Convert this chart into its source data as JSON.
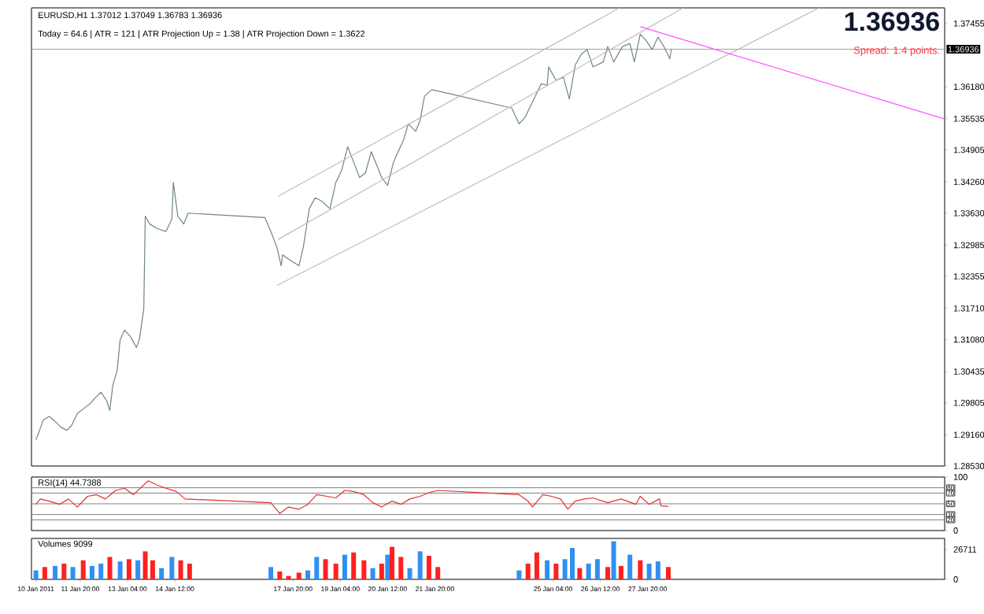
{
  "chart_data": [
    {
      "type": "line",
      "title": "EURUSD,H1  1.37012 1.37049 1.36783 1.36936",
      "subtitle": "Today = 64.6   |   ATR = 121   |   ATR Projection Up = 1.38   |   ATR Projection Down = 1.3622",
      "annotations": [
        "1.36936",
        "Spread: 1.4 points."
      ],
      "xlim": [
        "2011-01-10T11:00",
        "2011-02-05T05:00"
      ],
      "ylim": [
        1.2853,
        1.3777
      ],
      "tick_labels": "y",
      "yticks": [
        {
          "value": 1.2853,
          "label": "1.28530"
        },
        {
          "value": 1.2916,
          "label": "1.29160"
        },
        {
          "value": 1.29805,
          "label": "1.29805"
        },
        {
          "value": 1.30435,
          "label": "1.30435"
        },
        {
          "value": 1.3108,
          "label": "1.31080"
        },
        {
          "value": 1.3171,
          "label": "1.31710"
        },
        {
          "value": 1.32355,
          "label": "1.32355"
        },
        {
          "value": 1.32985,
          "label": "1.32985"
        },
        {
          "value": 1.3363,
          "label": "1.33630"
        },
        {
          "value": 1.3426,
          "label": "1.34260"
        },
        {
          "value": 1.34905,
          "label": "1.34905"
        },
        {
          "value": 1.35535,
          "label": "1.35535"
        },
        {
          "value": 1.3618,
          "label": "1.36180"
        },
        {
          "value": 1.37455,
          "label": "1.37455"
        }
      ],
      "ref_lines": [
        {
          "axis": "y",
          "value": 1.36936,
          "label": "1.36936",
          "color": "#a0a0a0"
        }
      ],
      "series": [
        {
          "color": "#6f8585",
          "x": [
            "2011-01-10T14:00",
            "2011-01-10T16:00",
            "2011-01-10T19:00",
            "2011-01-10T23:00",
            "2011-01-11T03:00",
            "2011-01-11T07:00",
            "2011-01-11T11:00",
            "2011-01-11T14:00",
            "2011-01-11T18:00",
            "2011-01-11T22:00",
            "2011-01-12T02:00",
            "2011-01-12T06:00",
            "2011-01-12T10:00",
            "2011-01-12T14:00",
            "2011-01-12T16:00",
            "2011-01-12T18:00",
            "2011-01-12T21:00",
            "2011-01-12T23:00",
            "2011-01-13T02:00",
            "2011-01-13T06:00",
            "2011-01-13T10:00",
            "2011-01-13T12:00",
            "2011-01-13T15:00",
            "2011-01-13T16:00",
            "2011-01-13T19:00",
            "2011-01-14T00:00",
            "2011-01-14T06:00",
            "2011-01-14T10:00",
            "2011-01-14T11:00",
            "2011-01-14T14:00",
            "2011-01-14T18:00",
            "2011-01-14T21:00",
            "2011-01-17T01:00",
            "2011-01-17T05:00",
            "2011-01-17T09:00",
            "2011-01-17T12:00",
            "2011-01-17T13:00",
            "2011-01-17T17:00",
            "2011-01-18T00:00",
            "2011-01-18T03:00",
            "2011-01-18T07:00",
            "2011-01-18T11:00",
            "2011-01-18T15:00",
            "2011-01-18T21:00",
            "2011-01-19T01:00",
            "2011-01-19T05:00",
            "2011-01-19T09:00",
            "2011-01-19T13:00",
            "2011-01-19T17:00",
            "2011-01-19T21:00",
            "2011-01-20T01:00",
            "2011-01-20T08:00",
            "2011-01-20T12:00",
            "2011-01-20T16:00",
            "2011-01-20T23:00",
            "2011-01-21T02:00",
            "2011-01-21T07:00",
            "2011-01-21T10:00",
            "2011-01-21T13:00",
            "2011-01-21T18:00",
            "2011-01-24T00:00",
            "2011-01-24T05:00",
            "2011-01-24T09:00",
            "2011-01-24T16:00",
            "2011-01-24T20:00",
            "2011-01-25T00:00",
            "2011-01-25T01:00",
            "2011-01-25T06:00",
            "2011-01-25T11:00",
            "2011-01-25T15:00",
            "2011-01-25T19:00",
            "2011-01-25T23:00",
            "2011-01-26T03:00",
            "2011-01-26T07:00",
            "2011-01-26T14:00",
            "2011-01-26T17:00",
            "2011-01-26T21:00",
            "2011-01-27T03:00",
            "2011-01-27T08:00",
            "2011-01-27T11:00",
            "2011-01-27T15:00",
            "2011-01-27T19:00",
            "2011-01-27T23:00",
            "2011-01-28T03:00",
            "2011-01-28T07:00",
            "2011-01-28T11:00",
            "2011-01-28T12:00"
          ],
          "values": [
            1.2906,
            1.2921,
            1.2946,
            1.2953,
            1.2943,
            1.2931,
            1.2925,
            1.2934,
            1.2959,
            1.2968,
            1.2977,
            1.299,
            1.3002,
            1.2984,
            1.2965,
            1.3015,
            1.3046,
            1.3108,
            1.3127,
            1.3114,
            1.3092,
            1.3108,
            1.317,
            1.3357,
            1.3341,
            1.3332,
            1.3326,
            1.3351,
            1.3425,
            1.3357,
            1.3341,
            1.3363,
            1.3354,
            1.3326,
            1.3295,
            1.3257,
            1.3279,
            1.327,
            1.3257,
            1.3295,
            1.3372,
            1.3394,
            1.3388,
            1.3372,
            1.3425,
            1.345,
            1.3497,
            1.3466,
            1.3435,
            1.3444,
            1.3487,
            1.3435,
            1.3419,
            1.3466,
            1.3512,
            1.3543,
            1.3528,
            1.355,
            1.3599,
            1.3612,
            1.3575,
            1.3543,
            1.3556,
            1.3599,
            1.3624,
            1.3621,
            1.3658,
            1.3631,
            1.3637,
            1.3593,
            1.3662,
            1.3683,
            1.3693,
            1.3658,
            1.3668,
            1.3699,
            1.3668,
            1.3699,
            1.3705,
            1.3668,
            1.3724,
            1.3711,
            1.3693,
            1.3718,
            1.3699,
            1.3674,
            1.3694
          ]
        },
        {
          "color": "#c8b8b8",
          "x": [
            "2011-01-17T10:00",
            "2011-01-27T01:00"
          ],
          "values": [
            1.3397,
            1.3777
          ]
        },
        {
          "color": "#c8b8b8",
          "x": [
            "2011-01-17T10:00",
            "2011-01-28T20:00"
          ],
          "values": [
            1.331,
            1.3777
          ]
        },
        {
          "color": "#c8b8b8",
          "x": [
            "2011-01-17T09:00",
            "2011-02-01T16:00"
          ],
          "values": [
            1.3217,
            1.3777
          ]
        },
        {
          "color": "#ff55ff",
          "x": [
            "2011-01-27T15:00",
            "2011-02-05T05:00"
          ],
          "values": [
            1.3739,
            1.3553
          ]
        }
      ]
    },
    {
      "type": "line",
      "title": "RSI(14) 44.7388",
      "xlim": [
        "2011-01-10T11:00",
        "2011-02-05T05:00"
      ],
      "ylim": [
        0,
        100
      ],
      "yticks": [
        0,
        100
      ],
      "tick_labels": "y",
      "ref_lines": [
        {
          "axis": "y",
          "value": 80,
          "label": "80",
          "color": "#808080"
        },
        {
          "axis": "y",
          "value": 70,
          "label": "70",
          "color": "#808080"
        },
        {
          "axis": "y",
          "value": 50,
          "label": "50",
          "color": "#808080"
        },
        {
          "axis": "y",
          "value": 30,
          "label": "30",
          "color": "#808080"
        },
        {
          "axis": "y",
          "value": 20,
          "label": "20",
          "color": "#808080"
        }
      ],
      "series": [
        {
          "color": "#e03030",
          "x": [
            "2011-01-10T14:00",
            "2011-01-10T17:00",
            "2011-01-10T23:00",
            "2011-01-11T06:00",
            "2011-01-11T12:00",
            "2011-01-11T18:00",
            "2011-01-12T01:00",
            "2011-01-12T07:00",
            "2011-01-12T13:00",
            "2011-01-12T20:00",
            "2011-01-13T02:00",
            "2011-01-13T08:00",
            "2011-01-13T18:00",
            "2011-01-14T00:00",
            "2011-01-14T06:00",
            "2011-01-14T13:00",
            "2011-01-14T19:00",
            "2011-01-17T05:00",
            "2011-01-17T11:00",
            "2011-01-17T17:00",
            "2011-01-18T00:00",
            "2011-01-18T06:00",
            "2011-01-18T12:00",
            "2011-01-18T19:00",
            "2011-01-19T01:00",
            "2011-01-19T07:00",
            "2011-01-19T13:00",
            "2011-01-19T20:00",
            "2011-01-20T02:00",
            "2011-01-20T08:00",
            "2011-01-20T15:00",
            "2011-01-20T21:00",
            "2011-01-21T03:00",
            "2011-01-21T10:00",
            "2011-01-21T16:00",
            "2011-01-21T22:00",
            "2011-01-24T05:00",
            "2011-01-24T11:00",
            "2011-01-24T14:00",
            "2011-01-24T21:00",
            "2011-01-25T03:00",
            "2011-01-25T09:00",
            "2011-01-25T14:00",
            "2011-01-25T19:00",
            "2011-01-26T01:00",
            "2011-01-26T07:00",
            "2011-01-26T17:00",
            "2011-01-27T02:00",
            "2011-01-27T12:00",
            "2011-01-27T15:00",
            "2011-01-27T21:00",
            "2011-01-28T04:00",
            "2011-01-28T05:00",
            "2011-01-28T10:00"
          ],
          "values": [
            49,
            59,
            55,
            49,
            59,
            44,
            64,
            67,
            59,
            75,
            79,
            67,
            93,
            85,
            79,
            73,
            59,
            52,
            32,
            44,
            40,
            49,
            67,
            64,
            61,
            75,
            73,
            67,
            52,
            44,
            55,
            49,
            59,
            64,
            71,
            75,
            67,
            55,
            44,
            67,
            64,
            59,
            40,
            55,
            59,
            61,
            52,
            59,
            49,
            64,
            49,
            59,
            46,
            45
          ]
        }
      ]
    },
    {
      "type": "bar",
      "title": "Volumes 9099",
      "xlim": [
        "2011-01-10T11:00",
        "2011-02-05T05:00"
      ],
      "ylim": [
        0,
        36500
      ],
      "yticks": [
        0,
        26711
      ],
      "xticks": [
        {
          "value": "2011-01-10T14:00",
          "label": "10 Jan 2011"
        },
        {
          "value": "2011-01-11T20:00",
          "label": "11 Jan 20:00"
        },
        {
          "value": "2011-01-13T04:00",
          "label": "13 Jan 04:00"
        },
        {
          "value": "2011-01-14T12:00",
          "label": "14 Jan 12:00"
        },
        {
          "value": "2011-01-17T20:00",
          "label": "17 Jan 20:00"
        },
        {
          "value": "2011-01-19T04:00",
          "label": "19 Jan 04:00"
        },
        {
          "value": "2011-01-20T12:00",
          "label": "20 Jan 12:00"
        },
        {
          "value": "2011-01-21T20:00",
          "label": "21 Jan 20:00"
        },
        {
          "value": "2011-01-25T04:00",
          "label": "25 Jan 04:00"
        },
        {
          "value": "2011-01-26T12:00",
          "label": "26 Jan 12:00"
        },
        {
          "value": "2011-01-27T20:00",
          "label": "27 Jan 20:00"
        }
      ],
      "x": [
        "2011-01-10T14:00",
        "2011-01-10T20:00",
        "2011-01-11T03:00",
        "2011-01-11T09:00",
        "2011-01-11T15:00",
        "2011-01-11T22:00",
        "2011-01-12T04:00",
        "2011-01-12T10:00",
        "2011-01-12T16:00",
        "2011-01-12T23:00",
        "2011-01-13T05:00",
        "2011-01-13T11:00",
        "2011-01-13T16:00",
        "2011-01-13T21:00",
        "2011-01-14T03:00",
        "2011-01-14T10:00",
        "2011-01-14T16:00",
        "2011-01-14T22:00",
        "2011-01-17T05:00",
        "2011-01-17T11:00",
        "2011-01-17T17:00",
        "2011-01-18T00:00",
        "2011-01-18T06:00",
        "2011-01-18T12:00",
        "2011-01-18T18:00",
        "2011-01-19T01:00",
        "2011-01-19T07:00",
        "2011-01-19T13:00",
        "2011-01-19T20:00",
        "2011-01-20T02:00",
        "2011-01-20T08:00",
        "2011-01-20T12:00",
        "2011-01-20T15:00",
        "2011-01-20T21:00",
        "2011-01-21T03:00",
        "2011-01-21T10:00",
        "2011-01-21T16:00",
        "2011-01-21T22:00",
        "2011-01-24T05:00",
        "2011-01-24T11:00",
        "2011-01-24T17:00",
        "2011-01-25T00:00",
        "2011-01-25T06:00",
        "2011-01-25T12:00",
        "2011-01-25T17:00",
        "2011-01-25T22:00",
        "2011-01-26T04:00",
        "2011-01-26T10:00",
        "2011-01-26T17:00",
        "2011-01-26T21:00",
        "2011-01-27T02:00",
        "2011-01-27T08:00",
        "2011-01-27T15:00",
        "2011-01-27T21:00",
        "2011-01-28T03:00",
        "2011-01-28T10:00"
      ],
      "values": [
        8000,
        11000,
        12000,
        14000,
        11000,
        17000,
        12000,
        14000,
        20000,
        16000,
        18000,
        17000,
        25000,
        17000,
        10000,
        20000,
        17000,
        14000,
        11000,
        7000,
        3000,
        6000,
        8000,
        20000,
        18000,
        14000,
        22000,
        24000,
        17000,
        10000,
        14000,
        22000,
        29000,
        20000,
        10000,
        25000,
        21000,
        11000,
        8000,
        14000,
        24000,
        17000,
        14000,
        18000,
        28000,
        10000,
        14000,
        18000,
        11000,
        34000,
        12000,
        22000,
        17000,
        14000,
        16000,
        11000
      ],
      "colors": [
        "#3090f0",
        "#ff2020",
        "#3090f0",
        "#ff2020",
        "#3090f0",
        "#ff2020",
        "#3090f0",
        "#3090f0",
        "#ff2020",
        "#3090f0",
        "#ff2020",
        "#3090f0",
        "#ff2020",
        "#ff2020",
        "#3090f0",
        "#3090f0",
        "#ff2020",
        "#ff2020",
        "#3090f0",
        "#ff2020",
        "#ff2020",
        "#ff2020",
        "#3090f0",
        "#3090f0",
        "#ff2020",
        "#ff2020",
        "#3090f0",
        "#ff2020",
        "#ff2020",
        "#3090f0",
        "#ff2020",
        "#3090f0",
        "#ff2020",
        "#ff2020",
        "#3090f0",
        "#3090f0",
        "#ff2020",
        "#ff2020",
        "#3090f0",
        "#ff2020",
        "#ff2020",
        "#3090f0",
        "#ff2020",
        "#3090f0",
        "#3090f0",
        "#ff2020",
        "#3090f0",
        "#3090f0",
        "#ff2020",
        "#3090f0",
        "#ff2020",
        "#3090f0",
        "#ff2020",
        "#3090f0",
        "#3090f0",
        "#ff2020"
      ]
    }
  ]
}
